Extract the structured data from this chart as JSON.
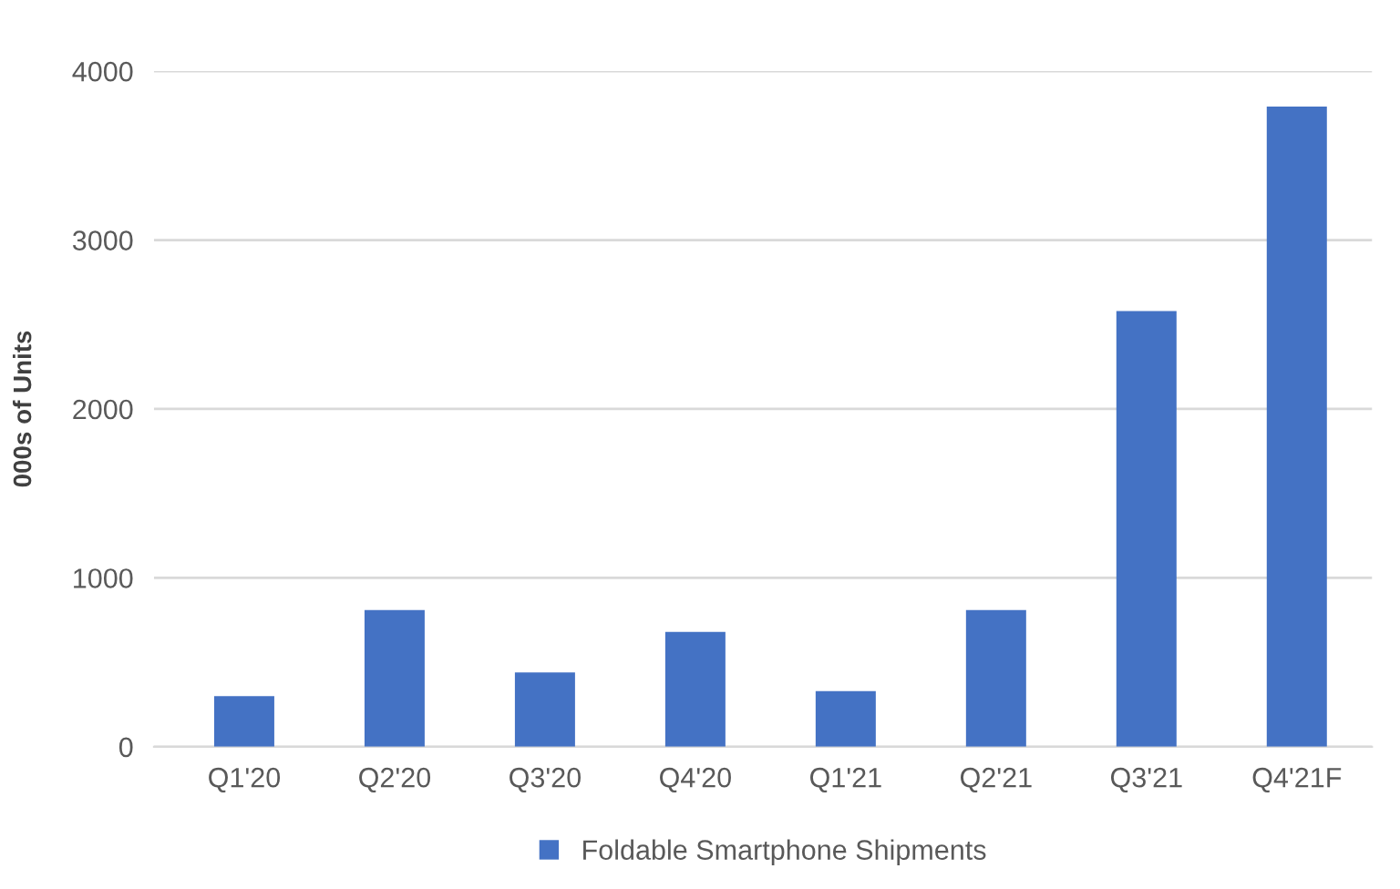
{
  "chart_data": {
    "type": "bar",
    "ylabel": "000s of Units",
    "categories": [
      "Q1'20",
      "Q2'20",
      "Q3'20",
      "Q4'20",
      "Q1'21",
      "Q2'21",
      "Q3'21",
      "Q4'21F"
    ],
    "series": [
      {
        "name": "Foldable Smartphone Shipments",
        "color": "#4472c4",
        "values": [
          300,
          810,
          440,
          680,
          330,
          810,
          2580,
          3790
        ]
      }
    ],
    "ylim": [
      0,
      4000
    ],
    "yticks": [
      0,
      1000,
      2000,
      3000,
      4000
    ],
    "grid": "y",
    "legend": "bottom"
  }
}
